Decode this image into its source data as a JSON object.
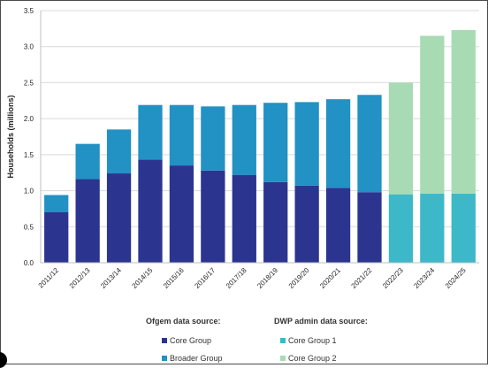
{
  "chart_data": {
    "type": "bar",
    "stacked": true,
    "categories": [
      "2011/12",
      "2012/13",
      "2013/14",
      "2014/15",
      "2015/16",
      "2016/17",
      "2017/18",
      "2018/19",
      "2019/20",
      "2020/21",
      "2021/22",
      "2022/23",
      "2023/24",
      "2024/25"
    ],
    "series": [
      {
        "name": "Core Group",
        "group": "Ofgem data source:",
        "color": "#2b3590",
        "values": [
          0.7,
          1.16,
          1.24,
          1.43,
          1.35,
          1.28,
          1.22,
          1.12,
          1.07,
          1.04,
          0.98,
          null,
          null,
          null
        ]
      },
      {
        "name": "Broader Group",
        "group": "Ofgem data source:",
        "color": "#2291c4",
        "values": [
          0.24,
          0.49,
          0.61,
          0.76,
          0.84,
          0.89,
          0.97,
          1.1,
          1.16,
          1.23,
          1.35,
          null,
          null,
          null
        ]
      },
      {
        "name": "Core Group 1",
        "group": "DWP admin data source:",
        "color": "#3db8c9",
        "values": [
          null,
          null,
          null,
          null,
          null,
          null,
          null,
          null,
          null,
          null,
          null,
          0.95,
          0.96,
          0.96
        ]
      },
      {
        "name": "Core Group 2",
        "group": "DWP admin data source:",
        "color": "#a8dbb3",
        "values": [
          null,
          null,
          null,
          null,
          null,
          null,
          null,
          null,
          null,
          null,
          null,
          1.55,
          2.19,
          2.27
        ]
      }
    ],
    "ylabel": "Households (millions)",
    "xlabel": "",
    "ylim": [
      0,
      3.5
    ],
    "yticks": [
      "0.0",
      "0.5",
      "1.0",
      "1.5",
      "2.0",
      "2.5",
      "3.0",
      "3.5"
    ],
    "grid": true,
    "legend_position": "bottom"
  },
  "legend": {
    "group1_title": "Ofgem data source:",
    "group2_title": "DWP admin data source:",
    "items": [
      "Core Group",
      "Broader Group",
      "Core Group 1",
      "Core Group 2"
    ]
  }
}
